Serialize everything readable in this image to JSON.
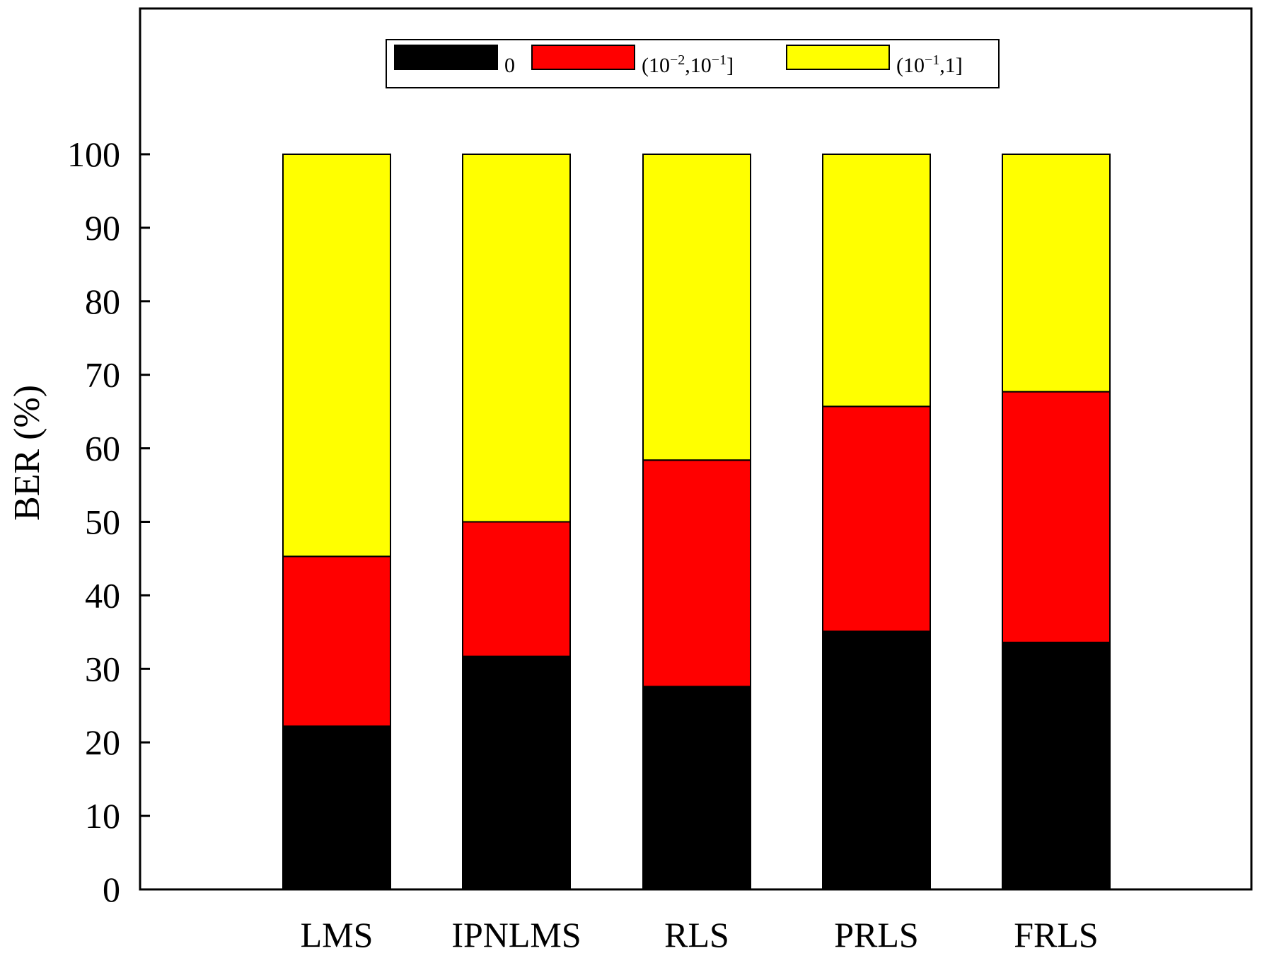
{
  "chart_data": {
    "type": "bar",
    "stacked": true,
    "title": "",
    "xlabel": "",
    "ylabel": "BER (%)",
    "ylim": [
      0,
      120
    ],
    "yticks": [
      0,
      10,
      20,
      30,
      40,
      50,
      60,
      70,
      80,
      90,
      100
    ],
    "ytick_labels": [
      "0",
      "10",
      "20",
      "30",
      "40",
      "50",
      "60",
      "70",
      "80",
      "90",
      "100"
    ],
    "categories": [
      "LMS",
      "IPNLMS",
      "RLS",
      "PRLS",
      "FRLS"
    ],
    "series": [
      {
        "name": "0",
        "color": "#000000",
        "values": [
          22.2,
          31.7,
          27.6,
          35.1,
          33.6
        ]
      },
      {
        "name": "(10⁻²,10⁻¹]",
        "color": "#ff0000",
        "values": [
          23.1,
          18.3,
          30.8,
          30.6,
          34.1
        ]
      },
      {
        "name": "(10⁻¹,1]",
        "color": "#ffff00",
        "values": [
          54.7,
          50.0,
          41.6,
          34.3,
          32.3
        ]
      }
    ],
    "legend": {
      "placement": "top-center",
      "entries": [
        {
          "base": "0",
          "sup1": "",
          "mid": "",
          "sup2": "",
          "tail": ""
        },
        {
          "base": "(10",
          "sup1": "−2",
          "mid": ",10",
          "sup2": "−1",
          "tail": "]"
        },
        {
          "base": "(10",
          "sup1": "−1",
          "mid": ",1]",
          "sup2": "",
          "tail": ""
        }
      ]
    },
    "grid": false
  }
}
